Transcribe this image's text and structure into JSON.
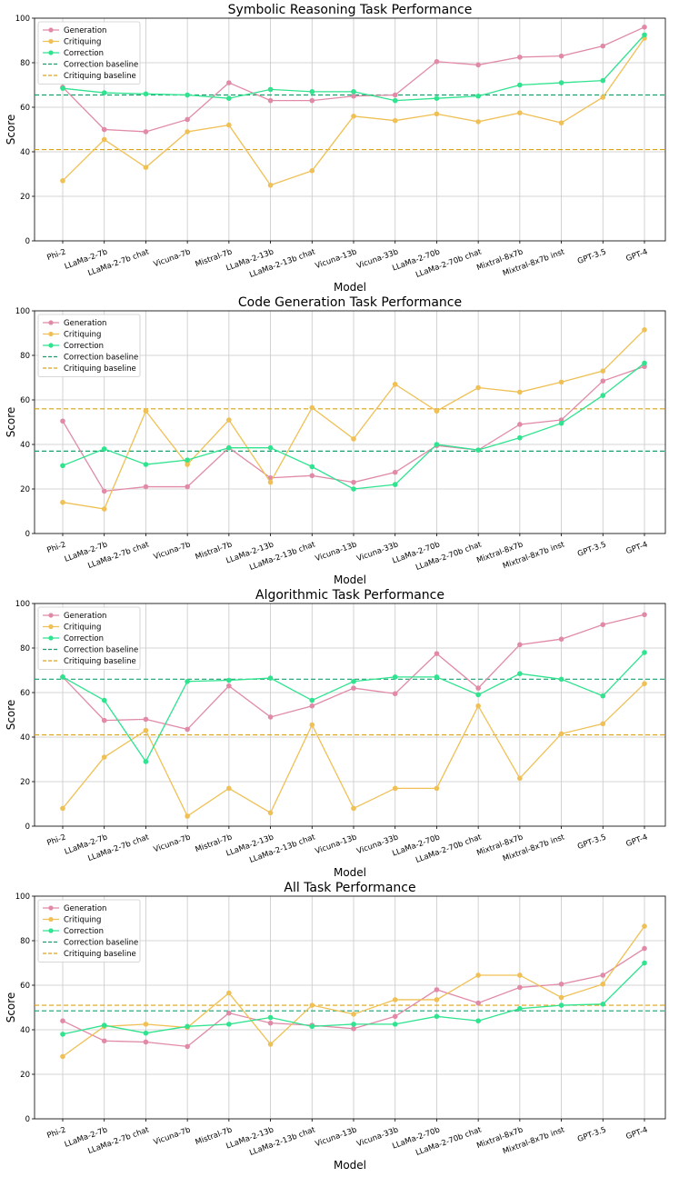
{
  "chart_data": [
    {
      "type": "line",
      "title": "Symbolic Reasoning Task Performance",
      "xlabel": "Model",
      "ylabel": "Score",
      "ylim": [
        0,
        100
      ],
      "yticks": [
        0,
        20,
        40,
        60,
        80,
        100
      ],
      "grid": true,
      "legend_placement": "upper-left",
      "categories": [
        "Phi-2",
        "LLaMa-2-7b",
        "LLaMa-2-7b chat",
        "Vicuna-7b",
        "Mistral-7b",
        "LLaMa-2-13b",
        "LLaMa-2-13b chat",
        "Vicuna-13b",
        "Vicuna-33b",
        "LLaMa-2-70b",
        "LLaMa-2-70b chat",
        "Mixtral-8x7b",
        "Mixtral-8x7b inst",
        "GPT-3.5",
        "GPT-4"
      ],
      "series": [
        {
          "name": "Generation",
          "color": "#e08aa8",
          "values": [
            69,
            50,
            49,
            54.5,
            71,
            63,
            63,
            65,
            65.5,
            80.5,
            79,
            82.5,
            83,
            87.5,
            96
          ]
        },
        {
          "name": "Critiquing",
          "color": "#efc055",
          "values": [
            27,
            45.5,
            33,
            49,
            52,
            25,
            31.5,
            56,
            54,
            57,
            53.5,
            57.5,
            53,
            64.5,
            91
          ]
        },
        {
          "name": "Correction",
          "color": "#2fe38f",
          "values": [
            68.5,
            66.5,
            66,
            65.5,
            64,
            68,
            67,
            67,
            63,
            64,
            65,
            70,
            71,
            72,
            92.5
          ]
        }
      ],
      "baselines": [
        {
          "name": "Correction baseline",
          "color": "#1e9e6e",
          "value": 65.5
        },
        {
          "name": "Critiquing baseline",
          "color": "#d9a21e",
          "value": 41
        }
      ]
    },
    {
      "type": "line",
      "title": "Code Generation Task Performance",
      "xlabel": "Model",
      "ylabel": "Score",
      "ylim": [
        0,
        100
      ],
      "yticks": [
        0,
        20,
        40,
        60,
        80,
        100
      ],
      "grid": true,
      "legend_placement": "upper-left",
      "categories": [
        "Phi-2",
        "LLaMa-2-7b",
        "LLaMa-2-7b chat",
        "Vicuna-7b",
        "Mistral-7b",
        "LLaMa-2-13b",
        "LLaMa-2-13b chat",
        "Vicuna-13b",
        "Vicuna-33b",
        "LLaMa-2-70b",
        "LLaMa-2-70b chat",
        "Mixtral-8x7b",
        "Mixtral-8x7b inst",
        "GPT-3.5",
        "GPT-4"
      ],
      "series": [
        {
          "name": "Generation",
          "color": "#e08aa8",
          "values": [
            50.5,
            19,
            21,
            21,
            38.5,
            25,
            26,
            23,
            27.5,
            39.5,
            37.5,
            49,
            51,
            68.5,
            75
          ]
        },
        {
          "name": "Critiquing",
          "color": "#efc055",
          "values": [
            14,
            11,
            55,
            31,
            51,
            23,
            56.5,
            42.5,
            67,
            55,
            65.5,
            63.5,
            68,
            73,
            91.5
          ]
        },
        {
          "name": "Correction",
          "color": "#2fe38f",
          "values": [
            30.5,
            38,
            31,
            33,
            38.5,
            38.5,
            30,
            20,
            22,
            40,
            37.5,
            43,
            49.5,
            62,
            76.5
          ]
        }
      ],
      "baselines": [
        {
          "name": "Correction baseline",
          "color": "#1e9e6e",
          "value": 37
        },
        {
          "name": "Critiquing baseline",
          "color": "#d9a21e",
          "value": 56
        }
      ]
    },
    {
      "type": "line",
      "title": "Algorithmic Task Performance",
      "xlabel": "Model",
      "ylabel": "Score",
      "ylim": [
        0,
        100
      ],
      "yticks": [
        0,
        20,
        40,
        60,
        80,
        100
      ],
      "grid": true,
      "legend_placement": "upper-left",
      "categories": [
        "Phi-2",
        "LLaMa-2-7b",
        "LLaMa-2-7b chat",
        "Vicuna-7b",
        "Mistral-7b",
        "LLaMa-2-13b",
        "LLaMa-2-13b chat",
        "Vicuna-13b",
        "Vicuna-33b",
        "LLaMa-2-70b",
        "LLaMa-2-70b chat",
        "Mixtral-8x7b",
        "Mixtral-8x7b inst",
        "GPT-3.5",
        "GPT-4"
      ],
      "series": [
        {
          "name": "Generation",
          "color": "#e08aa8",
          "values": [
            67,
            47.5,
            48,
            43.5,
            63,
            49,
            54,
            62,
            59.5,
            77.5,
            62,
            81.5,
            84,
            90.5,
            95
          ]
        },
        {
          "name": "Critiquing",
          "color": "#efc055",
          "values": [
            8,
            31,
            43,
            4.5,
            17,
            6,
            45.5,
            8,
            17,
            17,
            54,
            21.5,
            41.5,
            46,
            64
          ]
        },
        {
          "name": "Correction",
          "color": "#2fe38f",
          "values": [
            67,
            56.5,
            29,
            65,
            65.5,
            66.5,
            56.5,
            65,
            67,
            67,
            59,
            68.5,
            66,
            58.5,
            78
          ]
        }
      ],
      "baselines": [
        {
          "name": "Correction baseline",
          "color": "#1e9e6e",
          "value": 66
        },
        {
          "name": "Critiquing baseline",
          "color": "#d9a21e",
          "value": 41
        }
      ]
    },
    {
      "type": "line",
      "title": "All Task Performance",
      "xlabel": "Model",
      "ylabel": "Score",
      "ylim": [
        0,
        100
      ],
      "yticks": [
        0,
        20,
        40,
        60,
        80,
        100
      ],
      "grid": true,
      "legend_placement": "upper-left",
      "categories": [
        "Phi-2",
        "LLaMa-2-7b",
        "LLaMa-2-7b chat",
        "Vicuna-7b",
        "Mistral-7b",
        "LLaMa-2-13b",
        "LLaMa-2-13b chat",
        "Vicuna-13b",
        "Vicuna-33b",
        "LLaMa-2-70b",
        "LLaMa-2-70b chat",
        "Mixtral-8x7b",
        "Mixtral-8x7b inst",
        "GPT-3.5",
        "GPT-4"
      ],
      "series": [
        {
          "name": "Generation",
          "color": "#e08aa8",
          "values": [
            44,
            35,
            34.5,
            32.5,
            47.5,
            43,
            42,
            40.5,
            46,
            58,
            52,
            59,
            60.5,
            64.5,
            76.5
          ]
        },
        {
          "name": "Critiquing",
          "color": "#efc055",
          "values": [
            28,
            41.5,
            42.5,
            41,
            56.5,
            33.5,
            51,
            47,
            53.5,
            53.5,
            64.5,
            64.5,
            54.5,
            60.5,
            86.5
          ]
        },
        {
          "name": "Correction",
          "color": "#2fe38f",
          "values": [
            38,
            42,
            38.5,
            41.5,
            42.5,
            45.5,
            41.5,
            42.5,
            42.5,
            46,
            44,
            49.5,
            51,
            51.5,
            70
          ]
        }
      ],
      "baselines": [
        {
          "name": "Correction baseline",
          "color": "#1e9e6e",
          "value": 48.5
        },
        {
          "name": "Critiquing baseline",
          "color": "#d9a21e",
          "value": 51
        }
      ]
    }
  ]
}
